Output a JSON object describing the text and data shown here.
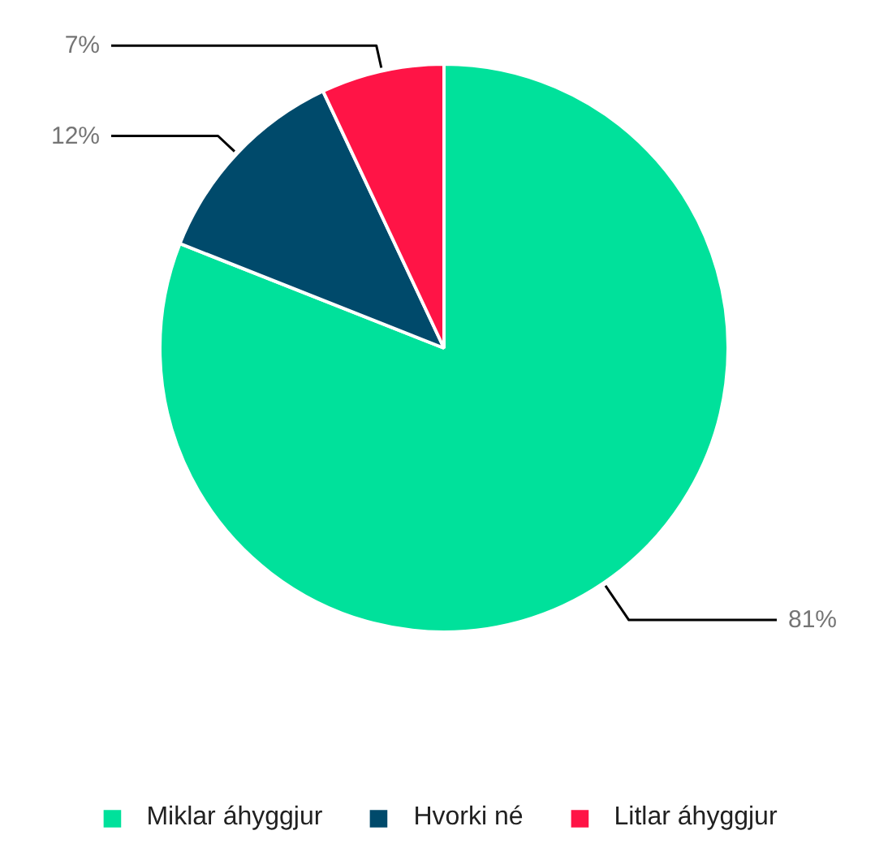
{
  "chart_data": {
    "type": "pie",
    "categories": [
      "Miklar áhyggjur",
      "Hvorki né",
      "Litlar áhyggjur"
    ],
    "values": [
      81,
      12,
      7
    ],
    "colors": [
      "#00e19b",
      "#004a6b",
      "#ff1446"
    ],
    "value_labels": [
      "81%",
      "12%",
      "7%"
    ],
    "legend": "bottom"
  }
}
